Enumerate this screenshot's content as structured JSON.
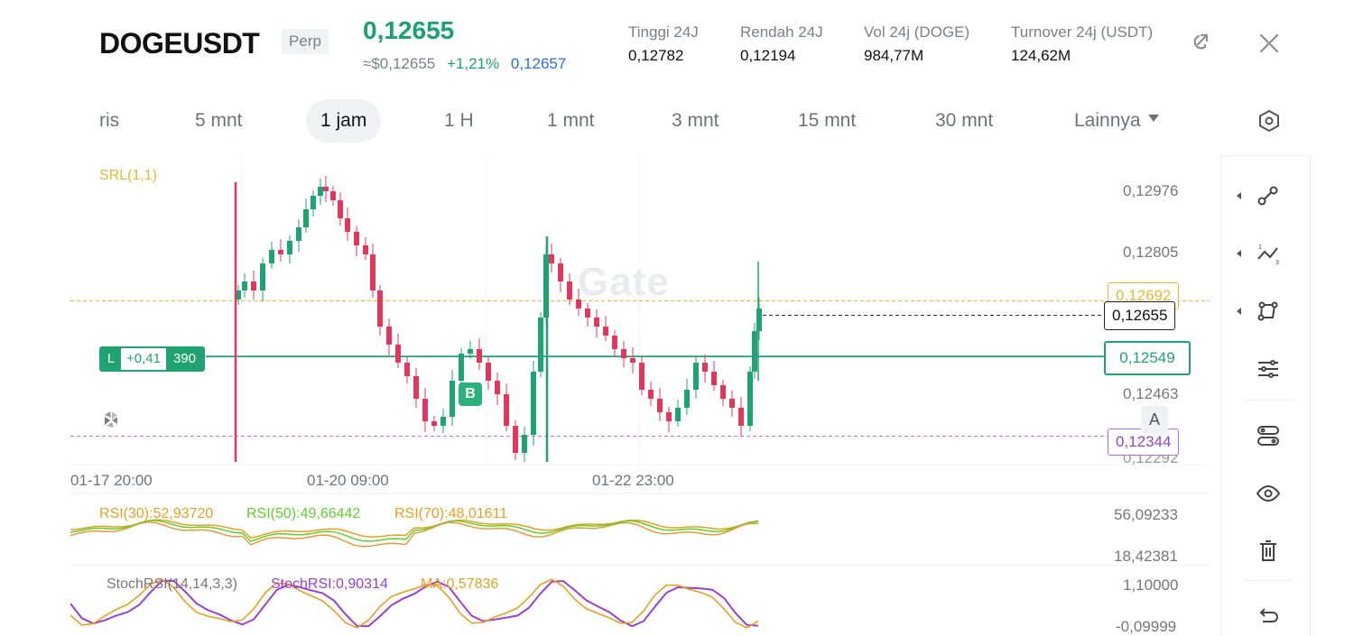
{
  "header": {
    "symbol": "DOGEUSDT",
    "badge": "Perp",
    "last_price": "0,12655",
    "usd_price": "≈$0,12655",
    "change_pct": "+1,21%",
    "mark_price": "0,12657",
    "stats": [
      {
        "label": "Tinggi 24J",
        "value": "0,12782"
      },
      {
        "label": "Rendah 24J",
        "value": "0,12194"
      },
      {
        "label": "Vol 24j (DOGE)",
        "value": "984,77M"
      },
      {
        "label": "Turnover 24j (USDT)",
        "value": "124,62M"
      }
    ],
    "icons": [
      "share-icon",
      "close-icon"
    ]
  },
  "tabs": [
    {
      "label": "ris",
      "active": false
    },
    {
      "label": "5 mnt",
      "active": false
    },
    {
      "label": "1 jam",
      "active": true
    },
    {
      "label": "1 H",
      "active": false
    },
    {
      "label": "1 mnt",
      "active": false
    },
    {
      "label": "3 mnt",
      "active": false
    },
    {
      "label": "15 mnt",
      "active": false
    },
    {
      "label": "30 mnt",
      "active": false
    },
    {
      "label": "Lainnya",
      "active": false,
      "dropdown": true
    }
  ],
  "chart": {
    "srl_label": "SRL(1,1)",
    "watermark": "Gate",
    "price_axis": [
      "0,12976",
      "0,12805",
      "0,12463",
      "0,12292"
    ],
    "tags": {
      "srl": "0,12692",
      "last": "0,12655",
      "entry": "0,12549",
      "low": "0,12344"
    },
    "position": {
      "side": "L",
      "pnl": "+0,41",
      "qty": "390"
    },
    "marker": "B",
    "scale_button": "A",
    "time_axis": [
      "01-17 20:00",
      "01-20 09:00",
      "01-22 23:00"
    ],
    "colors": {
      "up": "#1fa373",
      "down": "#e0385c",
      "srl": "#e8b92a",
      "low": "#b36ad9"
    }
  },
  "rsi": {
    "labels": [
      {
        "text": "RSI(30):52,93720",
        "color": "#e8a020"
      },
      {
        "text": "RSI(50):49,66442",
        "color": "#5fd12b"
      },
      {
        "text": "RSI(70):48,01611",
        "color": "#e8a020"
      }
    ],
    "max": "56,09233",
    "min": "18,42381"
  },
  "stoch": {
    "labels": [
      {
        "text": "StochRSI(14,14,3,3)",
        "color": "#777"
      },
      {
        "text": "StochRSI:0,90314",
        "color": "#9b3fd1"
      },
      {
        "text": "MA:0,57836",
        "color": "#e8a020"
      }
    ],
    "max": "1,10000",
    "min": "-0,09999"
  },
  "toolbar": [
    "trend-line-icon",
    "wave-line-icon",
    "shape-icon",
    "settings-sliders-icon",
    "indicator-icon",
    "eye-icon",
    "trash-icon",
    "undo-icon"
  ],
  "settings_icon": "hexagon-settings-icon",
  "chart_data": {
    "type": "candlestick",
    "interval": "1 jam",
    "price_range": [
      0.12292,
      0.12976
    ],
    "horizontal_lines": [
      {
        "name": "SRL",
        "value": 0.12692
      },
      {
        "name": "last",
        "value": 0.12655
      },
      {
        "name": "entry",
        "value": 0.12549
      },
      {
        "name": "low",
        "value": 0.12344
      }
    ]
  }
}
